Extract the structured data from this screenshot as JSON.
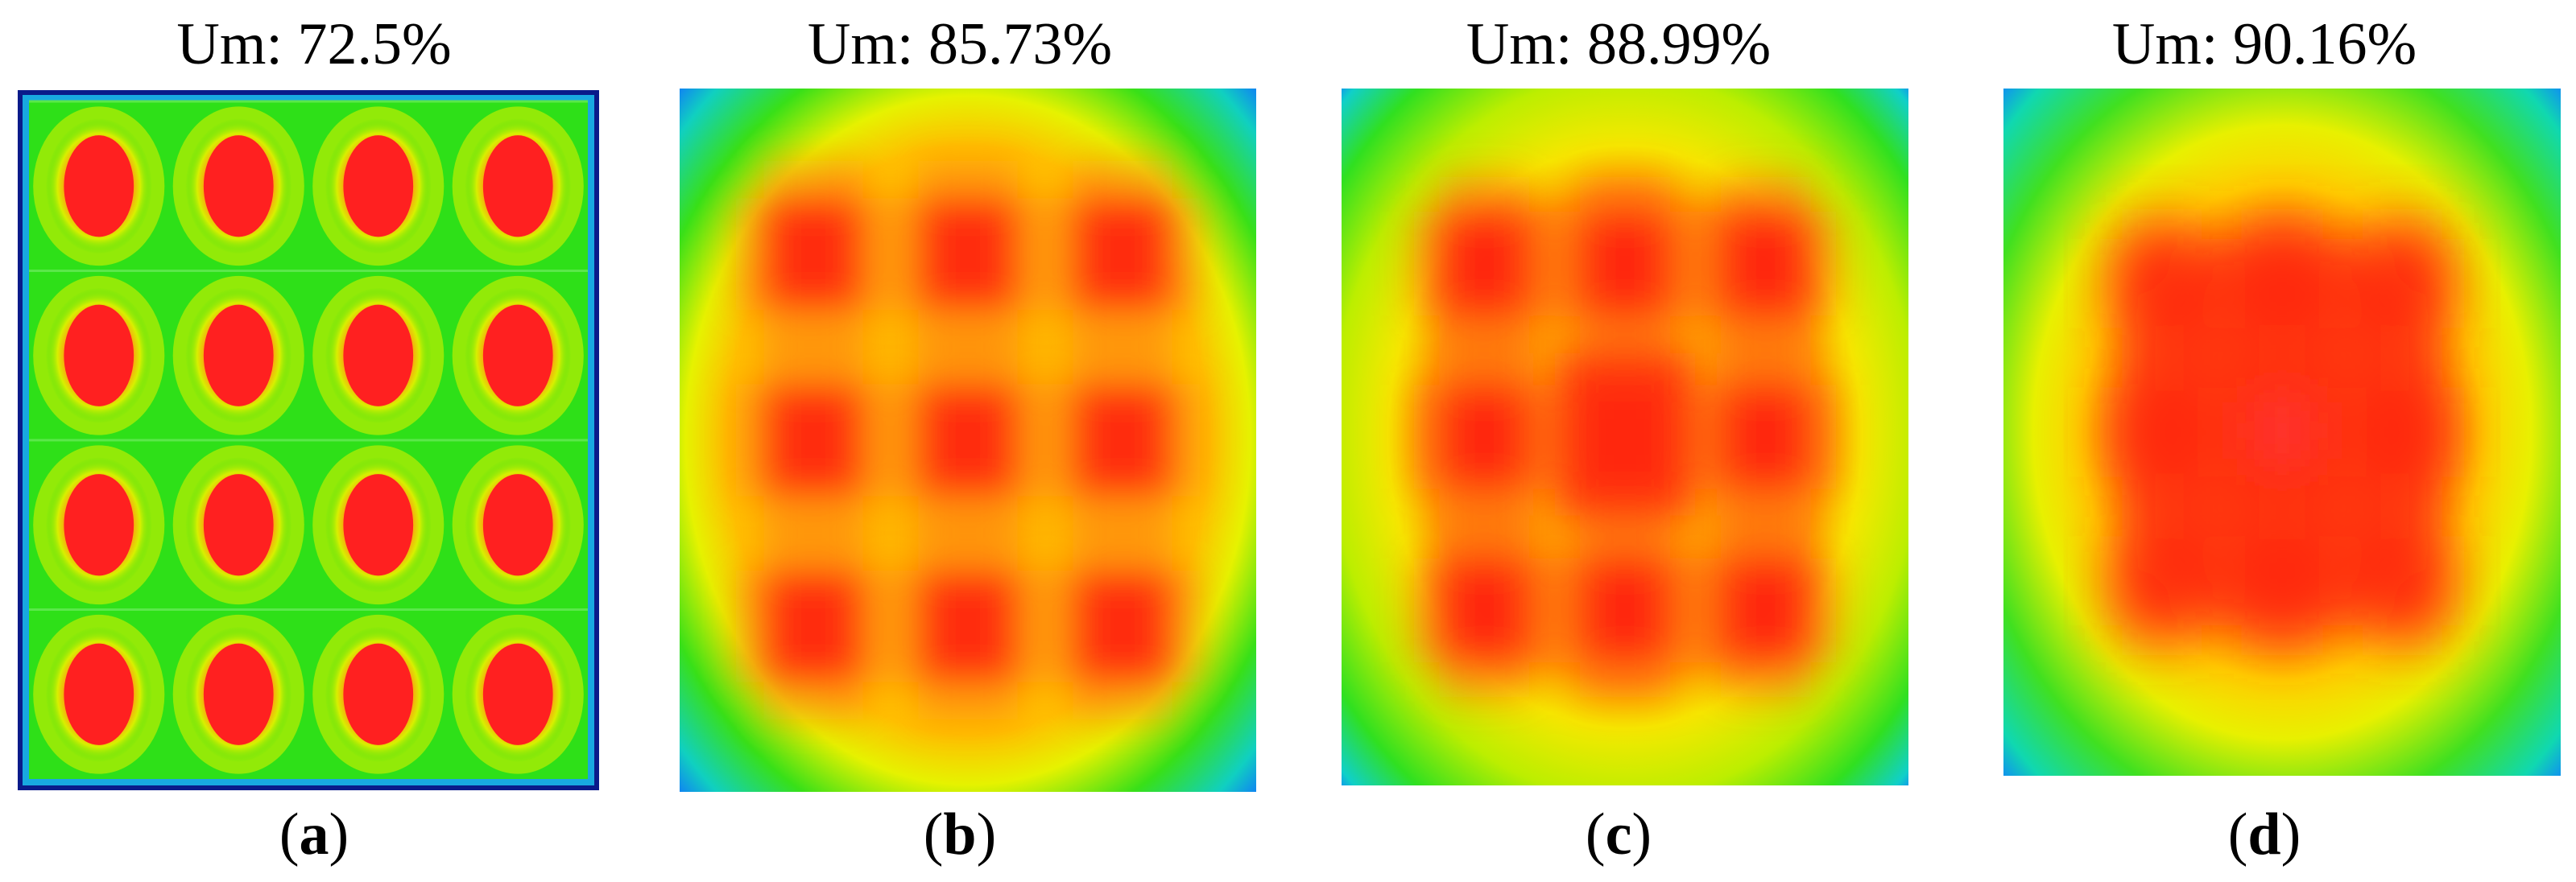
{
  "figure": {
    "panels": [
      {
        "id": "a",
        "title": "Um: 72.5%",
        "caption_open": "(",
        "caption_letter": "a",
        "caption_close": ")"
      },
      {
        "id": "b",
        "title": "Um: 85.73%",
        "caption_open": "(",
        "caption_letter": "b",
        "caption_close": ")"
      },
      {
        "id": "c",
        "title": "Um: 88.99%",
        "caption_open": "(",
        "caption_letter": "c",
        "caption_close": ")"
      },
      {
        "id": "d",
        "title": "Um: 90.16%",
        "caption_open": "(",
        "caption_letter": "d",
        "caption_close": ")"
      }
    ],
    "colors": {
      "red": "#ff2a1a",
      "orange": "#ff8a10",
      "yellow": "#f5f000",
      "green": "#22e010",
      "cyan": "#10d8b0",
      "blue": "#1060ff",
      "navy": "#0a1a8a"
    }
  }
}
